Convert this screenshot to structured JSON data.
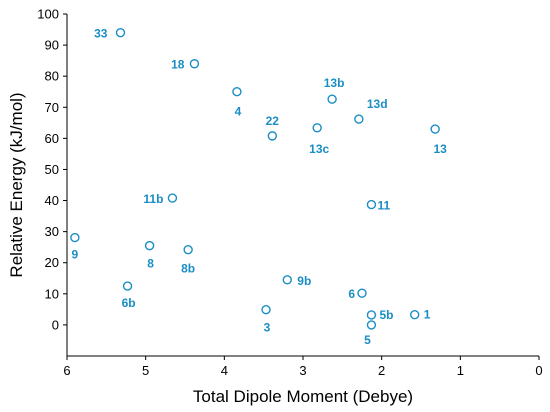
{
  "chart_data": {
    "type": "scatter",
    "title": "",
    "xlabel": "Total Dipole Moment (Debye)",
    "ylabel": "Relative Energy (kJ/mol)",
    "xlim": [
      6,
      0
    ],
    "x_reversed": true,
    "ylim": [
      -10,
      100
    ],
    "x_ticks": [
      6,
      5,
      4,
      3,
      2,
      1,
      0
    ],
    "y_ticks": [
      0,
      10,
      20,
      30,
      40,
      50,
      60,
      70,
      80,
      90,
      100
    ],
    "grid": false,
    "legend": "none",
    "marker": "open-circle",
    "color": "#1a8ec4",
    "points": [
      {
        "label": "33",
        "x": 5.32,
        "y": 94.0
      },
      {
        "label": "18",
        "x": 4.38,
        "y": 84.0
      },
      {
        "label": "4",
        "x": 3.84,
        "y": 75.0
      },
      {
        "label": "13b",
        "x": 2.63,
        "y": 72.6
      },
      {
        "label": "22",
        "x": 3.39,
        "y": 60.8
      },
      {
        "label": "13c",
        "x": 2.82,
        "y": 63.4
      },
      {
        "label": "13d",
        "x": 2.29,
        "y": 66.2
      },
      {
        "label": "13",
        "x": 1.32,
        "y": 63.0
      },
      {
        "label": "11b",
        "x": 4.66,
        "y": 40.8
      },
      {
        "label": "11",
        "x": 2.13,
        "y": 38.7
      },
      {
        "label": "9",
        "x": 5.9,
        "y": 28.1
      },
      {
        "label": "8",
        "x": 4.95,
        "y": 25.5
      },
      {
        "label": "8b",
        "x": 4.46,
        "y": 24.2
      },
      {
        "label": "6b",
        "x": 5.23,
        "y": 12.5
      },
      {
        "label": "9b",
        "x": 3.2,
        "y": 14.5
      },
      {
        "label": "6",
        "x": 2.25,
        "y": 10.2
      },
      {
        "label": "3",
        "x": 3.47,
        "y": 4.9
      },
      {
        "label": "5b",
        "x": 2.13,
        "y": 3.2
      },
      {
        "label": "5",
        "x": 2.13,
        "y": 0.0
      },
      {
        "label": "1",
        "x": 1.58,
        "y": 3.3
      }
    ]
  }
}
